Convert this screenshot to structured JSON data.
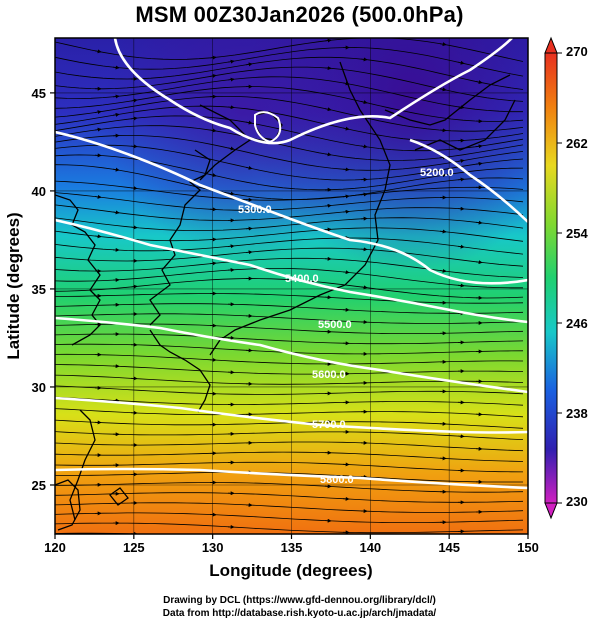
{
  "title": "MSM 00Z30Jan2026 (500.0hPa)",
  "map": {
    "xlabel": "Longitude (degrees)",
    "ylabel": "Latitude  (degrees)",
    "lon_range": [
      120,
      150
    ],
    "lat_range": [
      22.5,
      47.8
    ],
    "xticks": [
      "120",
      "125",
      "130",
      "135",
      "140",
      "145",
      "150"
    ],
    "yticks": [
      "25",
      "30",
      "35",
      "40",
      "45"
    ],
    "contour_labels": [
      "5200.0",
      "5300.0",
      "5400.0",
      "5500.0",
      "5600.0",
      "5700.0",
      "5800.0"
    ],
    "colorbar": {
      "min": 230,
      "max": 270,
      "ticks": [
        "270",
        "262",
        "254",
        "246",
        "238",
        "230"
      ]
    }
  },
  "credits": {
    "line1": "Drawing by DCL (https://www.gfd-dennou.org/library/dcl/)",
    "line2": "Data from http://database.rish.kyoto-u.ac.jp/arch/jmadata/"
  }
}
